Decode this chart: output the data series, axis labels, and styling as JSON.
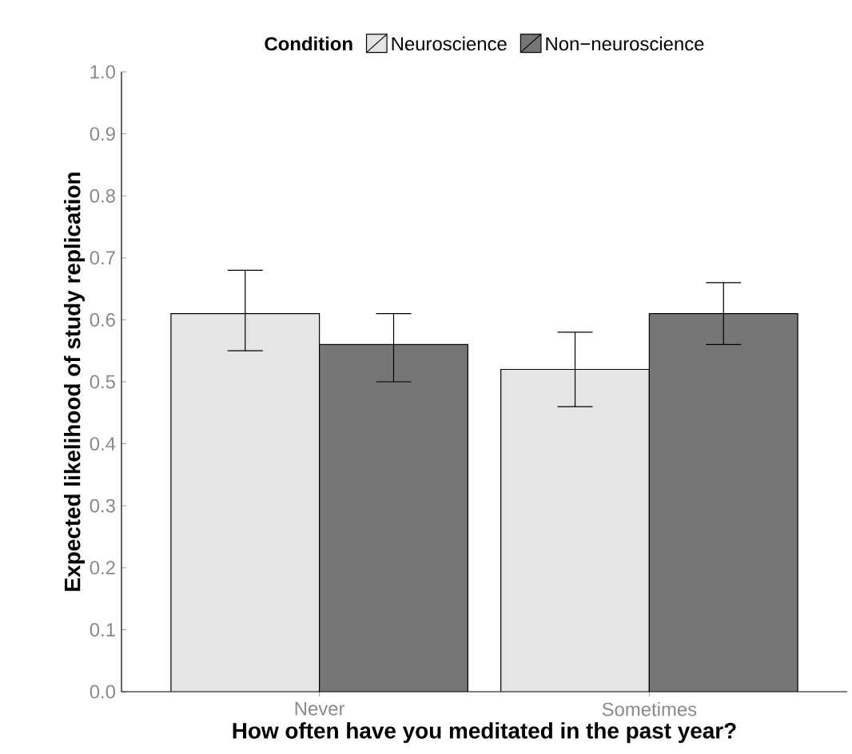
{
  "chart_data": {
    "type": "bar",
    "xlabel": "How often have you meditated in the past year?",
    "ylabel": "Expected likelihood of study replication",
    "legend_title": "Condition",
    "categories": [
      "Never",
      "Sometimes"
    ],
    "series": [
      {
        "name": "Neuroscience",
        "color": "#e5e5e5",
        "values": [
          0.61,
          0.52
        ],
        "errors": [
          [
            0.55,
            0.68
          ],
          [
            0.46,
            0.58
          ]
        ]
      },
      {
        "name": "Non−neuroscience",
        "color": "#767676",
        "values": [
          0.56,
          0.61
        ],
        "errors": [
          [
            0.5,
            0.61
          ],
          [
            0.56,
            0.66
          ]
        ]
      }
    ],
    "ylim": [
      0,
      1
    ],
    "yticks": [
      {
        "value": 0,
        "label": "0.0"
      },
      {
        "value": 0.1,
        "label": "0.1"
      },
      {
        "value": 0.2,
        "label": "0.2"
      },
      {
        "value": 0.3,
        "label": "0.3"
      },
      {
        "value": 0.4,
        "label": "0.4"
      },
      {
        "value": 0.5,
        "label": "0.5"
      },
      {
        "value": 0.6,
        "label": "0.6"
      },
      {
        "value": 0.7,
        "label": "0.7"
      },
      {
        "value": 0.8,
        "label": "0.8"
      },
      {
        "value": 0.9,
        "label": "0.9"
      },
      {
        "value": 1,
        "label": "1.0"
      }
    ],
    "grid": false,
    "legend": "top"
  }
}
